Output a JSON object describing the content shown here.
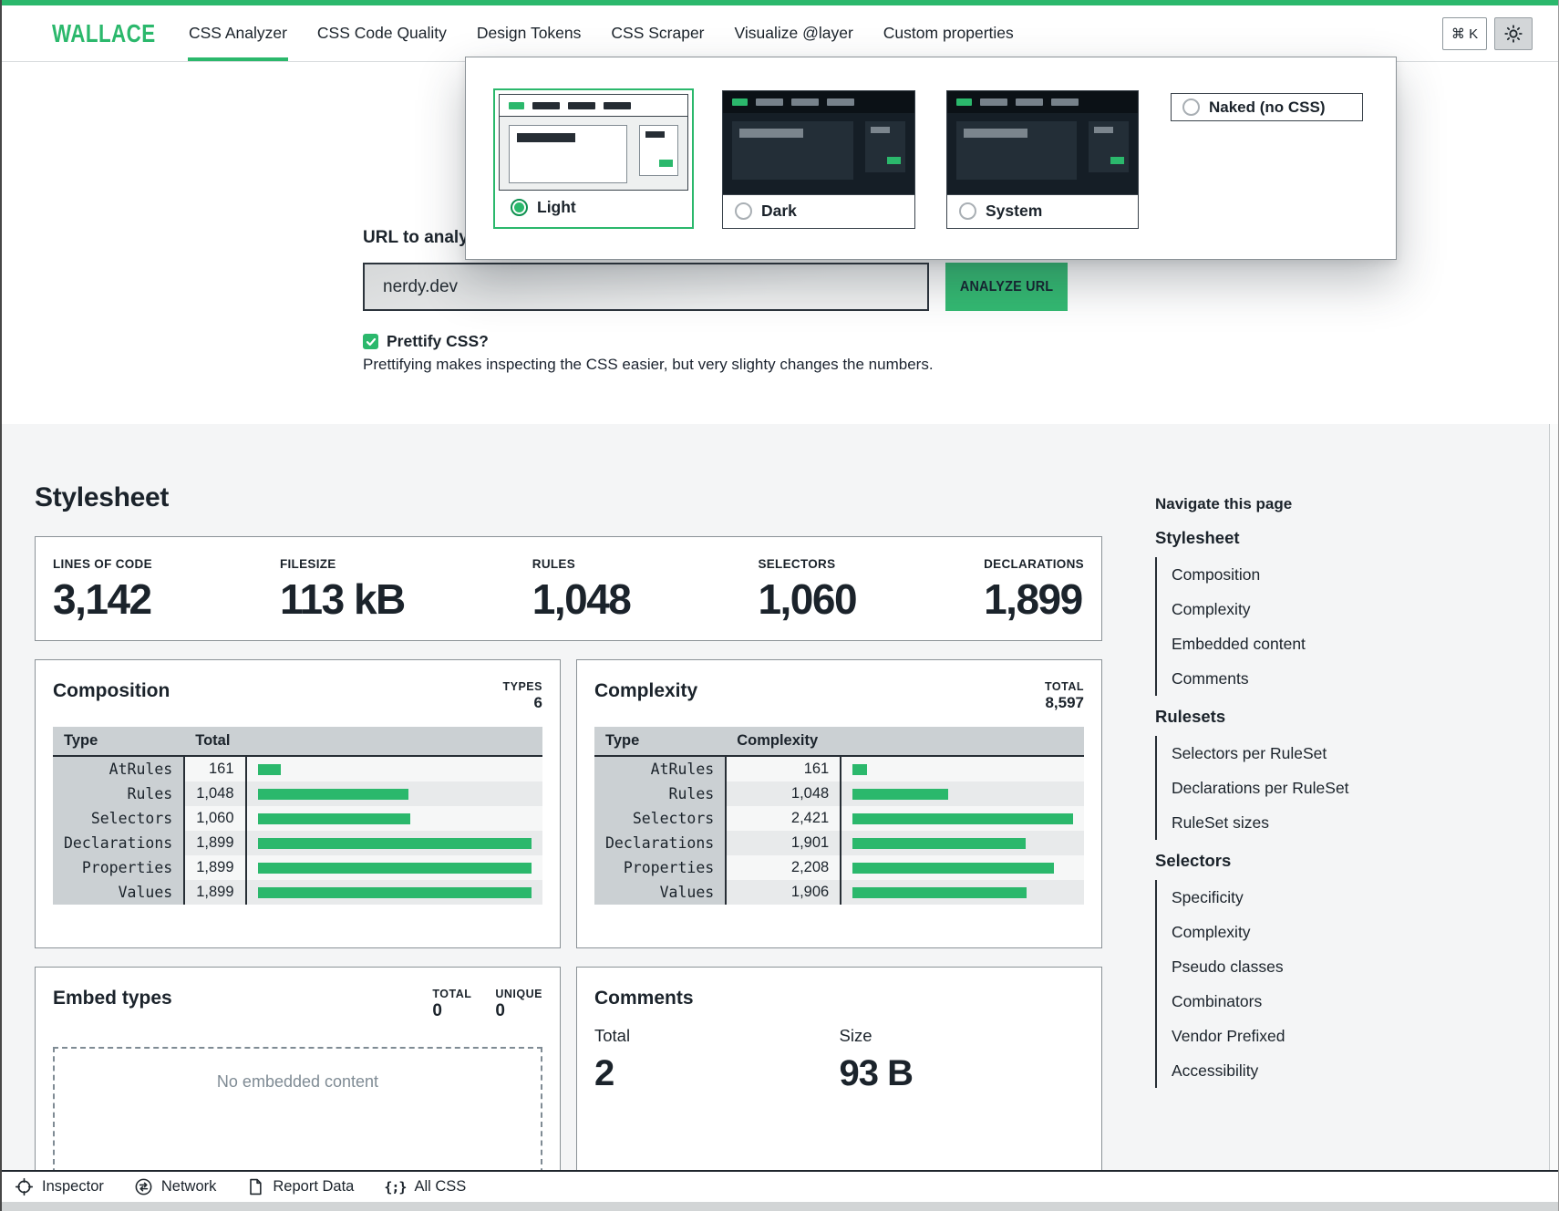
{
  "nav": {
    "logo": "WALLACE",
    "tabs": [
      {
        "label": "CSS Analyzer",
        "active": true
      },
      {
        "label": "CSS Code Quality",
        "active": false
      },
      {
        "label": "Design Tokens",
        "active": false
      },
      {
        "label": "CSS Scraper",
        "active": false
      },
      {
        "label": "Visualize @layer",
        "active": false
      },
      {
        "label": "Custom properties",
        "active": false
      }
    ],
    "shortcut": "⌘ K"
  },
  "theme_picker": {
    "options": [
      {
        "label": "Light",
        "selected": true
      },
      {
        "label": "Dark",
        "selected": false
      },
      {
        "label": "System",
        "selected": false
      },
      {
        "label": "Naked (no CSS)",
        "selected": false
      }
    ]
  },
  "form": {
    "url_label": "URL to analyze",
    "url_value": "nerdy.dev",
    "analyze_button": "ANALYZE URL",
    "prettify_label": "Prettify CSS?",
    "prettify_checked": true,
    "prettify_help": "Prettifying makes inspecting the CSS easier, but very slighty changes the numbers."
  },
  "report": {
    "title": "Stylesheet",
    "stats": [
      {
        "label": "LINES OF CODE",
        "value": "3,142"
      },
      {
        "label": "FILESIZE",
        "value": "113 kB"
      },
      {
        "label": "RULES",
        "value": "1,048"
      },
      {
        "label": "SELECTORS",
        "value": "1,060"
      },
      {
        "label": "DECLARATIONS",
        "value": "1,899"
      }
    ],
    "composition": {
      "title": "Composition",
      "meta_label": "TYPES",
      "meta_value": "6",
      "columns": [
        "Type",
        "Total"
      ],
      "rows": [
        {
          "type": "AtRules",
          "value": "161",
          "pct": 8.5
        },
        {
          "type": "Rules",
          "value": "1,048",
          "pct": 55.2
        },
        {
          "type": "Selectors",
          "value": "1,060",
          "pct": 55.8
        },
        {
          "type": "Declarations",
          "value": "1,899",
          "pct": 100
        },
        {
          "type": "Properties",
          "value": "1,899",
          "pct": 100
        },
        {
          "type": "Values",
          "value": "1,899",
          "pct": 100
        }
      ]
    },
    "complexity": {
      "title": "Complexity",
      "meta_label": "TOTAL",
      "meta_value": "8,597",
      "columns": [
        "Type",
        "Complexity"
      ],
      "rows": [
        {
          "type": "AtRules",
          "value": "161",
          "pct": 6.6
        },
        {
          "type": "Rules",
          "value": "1,048",
          "pct": 43.3
        },
        {
          "type": "Selectors",
          "value": "2,421",
          "pct": 100
        },
        {
          "type": "Declarations",
          "value": "1,901",
          "pct": 78.5
        },
        {
          "type": "Properties",
          "value": "2,208",
          "pct": 91.2
        },
        {
          "type": "Values",
          "value": "1,906",
          "pct": 78.7
        }
      ]
    },
    "embed": {
      "title": "Embed types",
      "total_label": "TOTAL",
      "total_value": "0",
      "unique_label": "UNIQUE",
      "unique_value": "0",
      "empty_text": "No embedded content"
    },
    "comments": {
      "title": "Comments",
      "total_label": "Total",
      "total_value": "2",
      "size_label": "Size",
      "size_value": "93 B"
    }
  },
  "page_nav": {
    "title": "Navigate this page",
    "groups": [
      {
        "label": "Stylesheet",
        "items": [
          "Composition",
          "Complexity",
          "Embedded content",
          "Comments"
        ]
      },
      {
        "label": "Rulesets",
        "items": [
          "Selectors per RuleSet",
          "Declarations per RuleSet",
          "RuleSet sizes"
        ]
      },
      {
        "label": "Selectors",
        "items": [
          "Specificity",
          "Complexity",
          "Pseudo classes",
          "Combinators",
          "Vendor Prefixed",
          "Accessibility"
        ]
      }
    ]
  },
  "statusbar": {
    "items": [
      {
        "label": "Inspector",
        "icon": "crosshair-icon"
      },
      {
        "label": "Network",
        "icon": "network-icon"
      },
      {
        "label": "Report Data",
        "icon": "document-icon"
      },
      {
        "label": "All CSS",
        "icon": "braces-icon"
      }
    ],
    "braces_glyph": "{;}"
  },
  "colors": {
    "accent_green": "#2bb86c",
    "dark_text": "#1b232b",
    "table_header_gray": "#cbd0d3"
  }
}
